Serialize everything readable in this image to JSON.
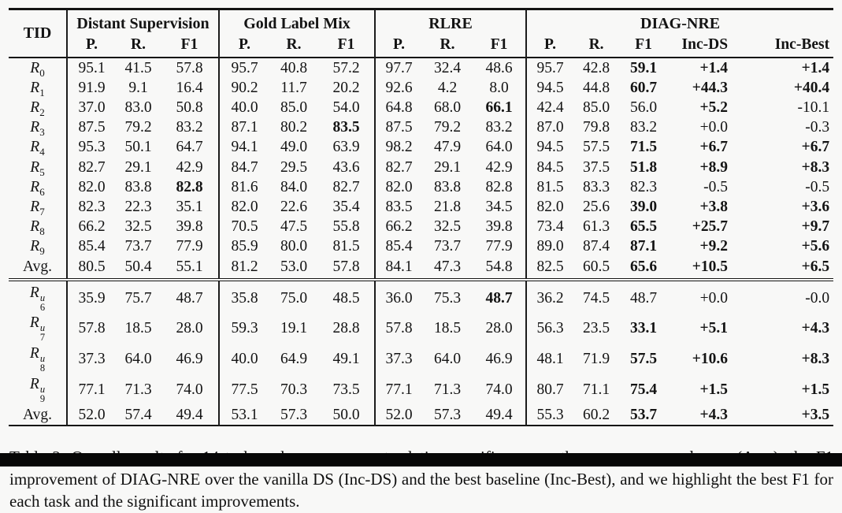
{
  "colors": {
    "text": "#141414",
    "rule": "#141414",
    "background": "#f8f8f7",
    "bottom_bar": "#070707"
  },
  "caption": {
    "text": "Table 2:  Overall results for 14 tasks, where we present relation-specific scores, the macro-averaged ones (Avg.), the F1 improvement of DIAG-NRE over the vanilla DS (Inc-DS) and the best baseline (Inc-Best), and we highlight the best F1 for each task and the significant improvements."
  },
  "table": {
    "tid_header": "TID",
    "groups": [
      {
        "label": "Distant Supervision",
        "cols": [
          "P.",
          "R.",
          "F1"
        ]
      },
      {
        "label": "Gold Label Mix",
        "cols": [
          "P.",
          "R.",
          "F1"
        ]
      },
      {
        "label": "RLRE",
        "cols": [
          "P.",
          "R.",
          "F1"
        ]
      },
      {
        "label": "DIAG-NRE",
        "cols": [
          "P.",
          "R.",
          "F1",
          "Inc-DS",
          "Inc-Best"
        ]
      }
    ],
    "sections": [
      {
        "rows": [
          {
            "tid": {
              "base": "R",
              "sub": "0",
              "sup": ""
            },
            "values": [
              "95.1",
              "41.5",
              "57.8",
              "95.7",
              "40.8",
              "57.2",
              "97.7",
              "32.4",
              "48.6",
              "95.7",
              "42.8",
              "59.1",
              "+1.4",
              "+1.4"
            ],
            "bold": [
              0,
              0,
              0,
              0,
              0,
              0,
              0,
              0,
              0,
              0,
              0,
              1,
              1,
              1
            ]
          },
          {
            "tid": {
              "base": "R",
              "sub": "1",
              "sup": ""
            },
            "values": [
              "91.9",
              "9.1",
              "16.4",
              "90.2",
              "11.7",
              "20.2",
              "92.6",
              "4.2",
              "8.0",
              "94.5",
              "44.8",
              "60.7",
              "+44.3",
              "+40.4"
            ],
            "bold": [
              0,
              0,
              0,
              0,
              0,
              0,
              0,
              0,
              0,
              0,
              0,
              1,
              1,
              1
            ]
          },
          {
            "tid": {
              "base": "R",
              "sub": "2",
              "sup": ""
            },
            "values": [
              "37.0",
              "83.0",
              "50.8",
              "40.0",
              "85.0",
              "54.0",
              "64.8",
              "68.0",
              "66.1",
              "42.4",
              "85.0",
              "56.0",
              "+5.2",
              "-10.1"
            ],
            "bold": [
              0,
              0,
              0,
              0,
              0,
              0,
              0,
              0,
              1,
              0,
              0,
              0,
              1,
              0
            ]
          },
          {
            "tid": {
              "base": "R",
              "sub": "3",
              "sup": ""
            },
            "values": [
              "87.5",
              "79.2",
              "83.2",
              "87.1",
              "80.2",
              "83.5",
              "87.5",
              "79.2",
              "83.2",
              "87.0",
              "79.8",
              "83.2",
              "+0.0",
              "-0.3"
            ],
            "bold": [
              0,
              0,
              0,
              0,
              0,
              1,
              0,
              0,
              0,
              0,
              0,
              0,
              0,
              0
            ]
          },
          {
            "tid": {
              "base": "R",
              "sub": "4",
              "sup": ""
            },
            "values": [
              "95.3",
              "50.1",
              "64.7",
              "94.1",
              "49.0",
              "63.9",
              "98.2",
              "47.9",
              "64.0",
              "94.5",
              "57.5",
              "71.5",
              "+6.7",
              "+6.7"
            ],
            "bold": [
              0,
              0,
              0,
              0,
              0,
              0,
              0,
              0,
              0,
              0,
              0,
              1,
              1,
              1
            ]
          },
          {
            "tid": {
              "base": "R",
              "sub": "5",
              "sup": ""
            },
            "values": [
              "82.7",
              "29.1",
              "42.9",
              "84.7",
              "29.5",
              "43.6",
              "82.7",
              "29.1",
              "42.9",
              "84.5",
              "37.5",
              "51.8",
              "+8.9",
              "+8.3"
            ],
            "bold": [
              0,
              0,
              0,
              0,
              0,
              0,
              0,
              0,
              0,
              0,
              0,
              1,
              1,
              1
            ]
          },
          {
            "tid": {
              "base": "R",
              "sub": "6",
              "sup": ""
            },
            "values": [
              "82.0",
              "83.8",
              "82.8",
              "81.6",
              "84.0",
              "82.7",
              "82.0",
              "83.8",
              "82.8",
              "81.5",
              "83.3",
              "82.3",
              "-0.5",
              "-0.5"
            ],
            "bold": [
              0,
              0,
              1,
              0,
              0,
              0,
              0,
              0,
              0,
              0,
              0,
              0,
              0,
              0
            ]
          },
          {
            "tid": {
              "base": "R",
              "sub": "7",
              "sup": ""
            },
            "values": [
              "82.3",
              "22.3",
              "35.1",
              "82.0",
              "22.6",
              "35.4",
              "83.5",
              "21.8",
              "34.5",
              "82.0",
              "25.6",
              "39.0",
              "+3.8",
              "+3.6"
            ],
            "bold": [
              0,
              0,
              0,
              0,
              0,
              0,
              0,
              0,
              0,
              0,
              0,
              1,
              1,
              1
            ]
          },
          {
            "tid": {
              "base": "R",
              "sub": "8",
              "sup": ""
            },
            "values": [
              "66.2",
              "32.5",
              "39.8",
              "70.5",
              "47.5",
              "55.8",
              "66.2",
              "32.5",
              "39.8",
              "73.4",
              "61.3",
              "65.5",
              "+25.7",
              "+9.7"
            ],
            "bold": [
              0,
              0,
              0,
              0,
              0,
              0,
              0,
              0,
              0,
              0,
              0,
              1,
              1,
              1
            ]
          },
          {
            "tid": {
              "base": "R",
              "sub": "9",
              "sup": ""
            },
            "values": [
              "85.4",
              "73.7",
              "77.9",
              "85.9",
              "80.0",
              "81.5",
              "85.4",
              "73.7",
              "77.9",
              "89.0",
              "87.4",
              "87.1",
              "+9.2",
              "+5.6"
            ],
            "bold": [
              0,
              0,
              0,
              0,
              0,
              0,
              0,
              0,
              0,
              0,
              0,
              1,
              1,
              1
            ]
          },
          {
            "tid": {
              "base": "Avg.",
              "sub": "",
              "sup": ""
            },
            "values": [
              "80.5",
              "50.4",
              "55.1",
              "81.2",
              "53.0",
              "57.8",
              "84.1",
              "47.3",
              "54.8",
              "82.5",
              "60.5",
              "65.6",
              "+10.5",
              "+6.5"
            ],
            "bold": [
              0,
              0,
              0,
              0,
              0,
              0,
              0,
              0,
              0,
              0,
              0,
              1,
              1,
              1
            ]
          }
        ]
      },
      {
        "rows": [
          {
            "tid": {
              "base": "R",
              "sub": "6",
              "sup": "u"
            },
            "values": [
              "35.9",
              "75.7",
              "48.7",
              "35.8",
              "75.0",
              "48.5",
              "36.0",
              "75.3",
              "48.7",
              "36.2",
              "74.5",
              "48.7",
              "+0.0",
              "-0.0"
            ],
            "bold": [
              0,
              0,
              0,
              0,
              0,
              0,
              0,
              0,
              1,
              0,
              0,
              0,
              0,
              0
            ]
          },
          {
            "tid": {
              "base": "R",
              "sub": "7",
              "sup": "u"
            },
            "values": [
              "57.8",
              "18.5",
              "28.0",
              "59.3",
              "19.1",
              "28.8",
              "57.8",
              "18.5",
              "28.0",
              "56.3",
              "23.5",
              "33.1",
              "+5.1",
              "+4.3"
            ],
            "bold": [
              0,
              0,
              0,
              0,
              0,
              0,
              0,
              0,
              0,
              0,
              0,
              1,
              1,
              1
            ]
          },
          {
            "tid": {
              "base": "R",
              "sub": "8",
              "sup": "u"
            },
            "values": [
              "37.3",
              "64.0",
              "46.9",
              "40.0",
              "64.9",
              "49.1",
              "37.3",
              "64.0",
              "46.9",
              "48.1",
              "71.9",
              "57.5",
              "+10.6",
              "+8.3"
            ],
            "bold": [
              0,
              0,
              0,
              0,
              0,
              0,
              0,
              0,
              0,
              0,
              0,
              1,
              1,
              1
            ]
          },
          {
            "tid": {
              "base": "R",
              "sub": "9",
              "sup": "u"
            },
            "values": [
              "77.1",
              "71.3",
              "74.0",
              "77.5",
              "70.3",
              "73.5",
              "77.1",
              "71.3",
              "74.0",
              "80.7",
              "71.1",
              "75.4",
              "+1.5",
              "+1.5"
            ],
            "bold": [
              0,
              0,
              0,
              0,
              0,
              0,
              0,
              0,
              0,
              0,
              0,
              1,
              1,
              1
            ]
          },
          {
            "tid": {
              "base": "Avg.",
              "sub": "",
              "sup": ""
            },
            "values": [
              "52.0",
              "57.4",
              "49.4",
              "53.1",
              "57.3",
              "50.0",
              "52.0",
              "57.3",
              "49.4",
              "55.3",
              "60.2",
              "53.7",
              "+4.3",
              "+3.5"
            ],
            "bold": [
              0,
              0,
              0,
              0,
              0,
              0,
              0,
              0,
              0,
              0,
              0,
              1,
              1,
              1
            ]
          }
        ]
      }
    ]
  }
}
